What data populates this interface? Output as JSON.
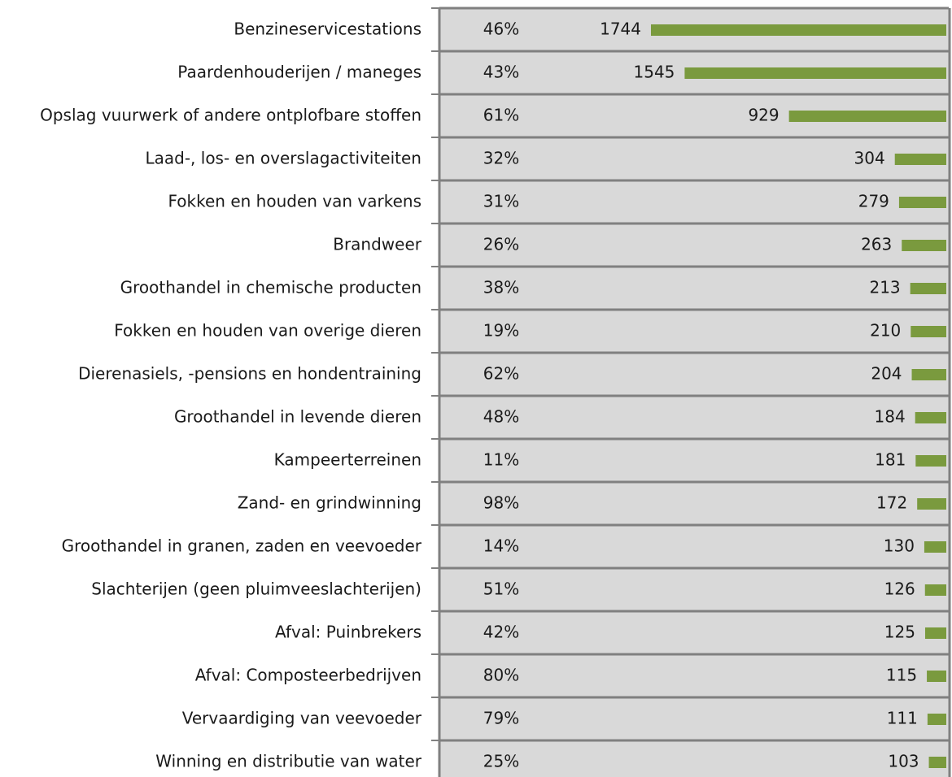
{
  "chart_data": {
    "type": "bar",
    "orientation": "horizontal",
    "color": "#7a9a3e",
    "categories": [
      "Benzineservicestations",
      "Paardenhouderijen / maneges",
      "Opslag vuurwerk of andere ontplofbare stoffen",
      "Laad-, los- en overslagactiviteiten",
      "Fokken en houden van varkens",
      "Brandweer",
      "Groothandel in chemische producten",
      "Fokken en houden van overige dieren",
      "Dierenasiels, -pensions en hondentraining",
      "Groothandel in levende dieren",
      "Kampeerterreinen",
      "Zand- en grindwinning",
      "Groothandel in granen, zaden en veevoeder",
      "Slachterijen (geen pluimveeslachterijen)",
      "Afval: Puinbrekers",
      "Afval: Composteerbedrijven",
      "Vervaardiging van veevoeder",
      "Winning en distributie van water"
    ],
    "values": [
      1744,
      1545,
      929,
      304,
      279,
      263,
      213,
      210,
      204,
      184,
      181,
      172,
      130,
      126,
      125,
      115,
      111,
      103
    ],
    "share": {
      "values": [
        46,
        43,
        61,
        32,
        31,
        26,
        38,
        19,
        62,
        48,
        11,
        98,
        14,
        51,
        42,
        80,
        79,
        25
      ],
      "value_labels": [
        "46%",
        "43%",
        "61%",
        "32%",
        "31%",
        "26%",
        "38%",
        "19%",
        "62%",
        "48%",
        "11%",
        "98%",
        "14%",
        "51%",
        "42%",
        "80%",
        "79%",
        "25%"
      ]
    }
  }
}
